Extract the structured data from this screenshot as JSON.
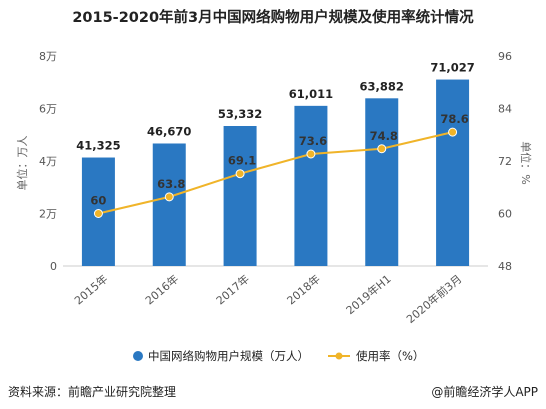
{
  "footer": {
    "source": "资料来源：前瞻产业研究院整理",
    "brand": "@前瞻经济学人APP"
  },
  "colors": {
    "bar": "#2a78c2",
    "line": "#f0b429",
    "marker_stroke": "#ffffff"
  },
  "chart_data": {
    "type": "bar",
    "title": "2015-2020年前3月中国网络购物用户规模及使用率统计情况",
    "categories": [
      "2015年",
      "2016年",
      "2017年",
      "2018年",
      "2019年H1",
      "2020年前3月"
    ],
    "series": [
      {
        "name": "中国网络购物用户规模（万人）",
        "type": "bar",
        "axis": "left",
        "values": [
          41325,
          46670,
          53332,
          61011,
          63882,
          71027
        ],
        "labels": [
          "41,325",
          "46,670",
          "53,332",
          "61,011",
          "63,882",
          "71,027"
        ]
      },
      {
        "name": "使用率（%）",
        "type": "line",
        "axis": "right",
        "values": [
          60,
          63.8,
          69.1,
          73.6,
          74.8,
          78.6
        ],
        "labels": [
          "60",
          "63.8",
          "69.1",
          "73.6",
          "74.8",
          "78.6"
        ]
      }
    ],
    "ylabel_left": "单位：万人",
    "ylabel_right": "单位：%",
    "ylim_left": [
      0,
      80000
    ],
    "ylim_right": [
      48,
      96
    ],
    "yticks_left": [
      "0",
      "2万",
      "4万",
      "6万",
      "8万"
    ],
    "yticks_right": [
      "48",
      "60",
      "72",
      "84",
      "96"
    ],
    "legend_position": "bottom",
    "grid": false
  }
}
